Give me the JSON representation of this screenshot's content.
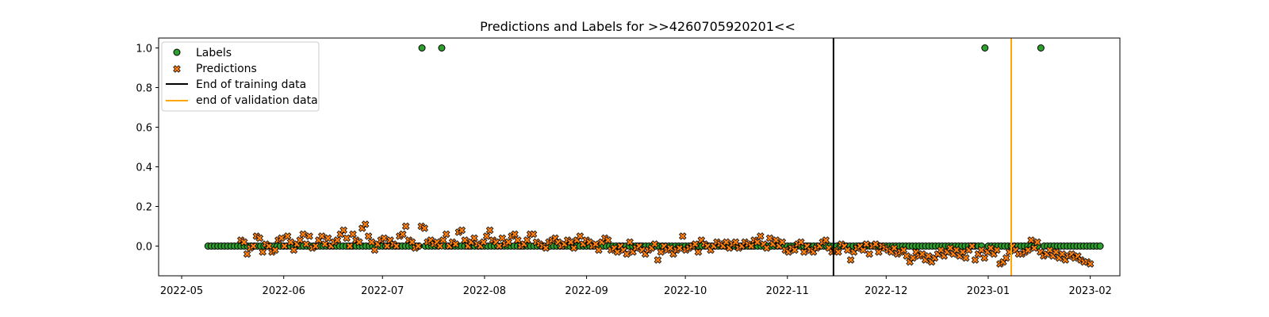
{
  "chart_data": {
    "type": "scatter",
    "title": "Predictions and Labels for >>4260705920201<<",
    "xlabel": "",
    "ylabel": "",
    "xlim": [
      "2022-04-24",
      "2023-02-10"
    ],
    "ylim": [
      -0.15,
      1.05
    ],
    "x_ticks": [
      "2022-05",
      "2022-06",
      "2022-07",
      "2022-08",
      "2022-09",
      "2022-10",
      "2022-11",
      "2022-12",
      "2023-01",
      "2023-02"
    ],
    "y_ticks": [
      "0.0",
      "0.2",
      "0.4",
      "0.6",
      "0.8",
      "1.0"
    ],
    "grid": false,
    "legend_position": "top-left",
    "legend": {
      "labels": "Labels",
      "predictions": "Predictions",
      "training_end": "End of training data",
      "validation_end": "end of validation data"
    },
    "colors": {
      "labels_fill": "#2ca02c",
      "predictions_fill": "#ff7f0e",
      "marker_edge": "#000000",
      "training_line": "#000000",
      "validation_line": "#ffa500"
    },
    "label_series": {
      "start_date": "2022-05-09",
      "end_date": "2023-02-04",
      "default_value": 0,
      "positive_dates": [
        "2022-07-13",
        "2022-07-19",
        "2022-12-31",
        "2023-01-17"
      ]
    },
    "prediction_series": {
      "start_date": "2022-05-19",
      "end_date": "2023-02-01",
      "values": [
        0.03,
        0.02,
        -0.04,
        -0.01,
        0.0,
        0.05,
        0.04,
        -0.03,
        0.01,
        0.0,
        -0.03,
        -0.02,
        0.03,
        0.04,
        0.0,
        0.05,
        0.02,
        -0.02,
        0.01,
        0.03,
        0.06,
        0.01,
        0.05,
        -0.01,
        0.0,
        0.03,
        0.05,
        0.01,
        0.04,
        0.0,
        0.02,
        0.03,
        0.06,
        0.08,
        0.04,
        0.0,
        0.06,
        0.03,
        0.02,
        0.09,
        0.11,
        0.05,
        0.02,
        -0.02,
        0.01,
        0.03,
        0.04,
        0.0,
        0.03,
        0.01,
        0.0,
        0.05,
        0.06,
        0.1,
        0.03,
        0.02,
        -0.01,
        0.0,
        0.1,
        0.09,
        0.02,
        0.03,
        0.01,
        0.02,
        0.0,
        0.03,
        0.06,
        0.0,
        0.02,
        0.01,
        0.07,
        0.08,
        0.03,
        0.0,
        0.02,
        0.04,
        0.01,
        0.0,
        0.02,
        0.05,
        0.08,
        0.03,
        0.02,
        0.0,
        0.04,
        0.01,
        0.02,
        0.05,
        0.06,
        0.03,
        0.0,
        0.01,
        0.03,
        0.06,
        0.06,
        0.02,
        0.01,
        0.0,
        -0.01,
        0.02,
        0.03,
        0.04,
        0.02,
        0.0,
        0.01,
        0.03,
        0.02,
        -0.01,
        0.03,
        0.05,
        0.01,
        0.03,
        0.02,
        0.0,
        0.01,
        -0.02,
        0.02,
        0.04,
        0.03,
        -0.02,
        -0.01,
        -0.03,
        0.0,
        -0.02,
        -0.04,
        0.02,
        -0.03,
        -0.01,
        0.0,
        -0.02,
        -0.04,
        -0.02,
        -0.01,
        0.01,
        -0.07,
        -0.03,
        0.0,
        -0.02,
        -0.01,
        -0.04,
        -0.02,
        -0.01,
        0.05,
        -0.02,
        -0.01,
        0.0,
        0.01,
        -0.03,
        0.03,
        0.01,
        0.0,
        -0.02,
        0.0,
        0.02,
        0.01,
        0.0,
        0.02,
        -0.01,
        0.01,
        0.02,
        -0.01,
        0.0,
        0.02,
        0.01,
        0.0,
        0.03,
        0.02,
        0.05,
        0.01,
        -0.01,
        0.04,
        0.01,
        0.03,
        0.0,
        0.02,
        -0.02,
        -0.03,
        -0.01,
        -0.02,
        0.01,
        0.02,
        -0.03,
        0.0,
        -0.02,
        -0.03,
        -0.01,
        0.0,
        0.02,
        0.03,
        -0.01,
        -0.03,
        -0.02,
        -0.03,
        0.01,
        0.0,
        -0.02,
        -0.07,
        -0.03,
        -0.01,
        0.0,
        -0.02,
        0.01,
        -0.04,
        0.0,
        0.01,
        -0.03,
        0.0,
        -0.01,
        -0.02,
        -0.03,
        -0.01,
        -0.04,
        -0.03,
        -0.02,
        -0.05,
        -0.08,
        -0.06,
        -0.03,
        -0.05,
        -0.04,
        -0.07,
        -0.05,
        -0.08,
        -0.06,
        -0.04,
        -0.02,
        -0.05,
        -0.03,
        -0.01,
        -0.04,
        -0.02,
        -0.05,
        -0.03,
        -0.06,
        -0.02,
        0.0,
        -0.07,
        -0.04,
        -0.02,
        -0.06,
        -0.03,
        -0.01,
        -0.04,
        -0.02,
        -0.09,
        -0.08,
        -0.06,
        -0.03,
        0.0,
        -0.02,
        -0.04,
        -0.04,
        -0.03,
        -0.02,
        0.03,
        -0.01,
        0.02,
        -0.03,
        -0.05,
        -0.04,
        -0.02,
        -0.05,
        -0.03,
        -0.06,
        -0.04,
        -0.07,
        -0.05,
        -0.04,
        -0.06,
        -0.05,
        -0.07,
        -0.08,
        -0.08,
        -0.09
      ]
    },
    "vertical_lines": [
      {
        "name": "End of training data",
        "date": "2022-11-15"
      },
      {
        "name": "end of validation data",
        "date": "2023-01-08"
      }
    ]
  }
}
